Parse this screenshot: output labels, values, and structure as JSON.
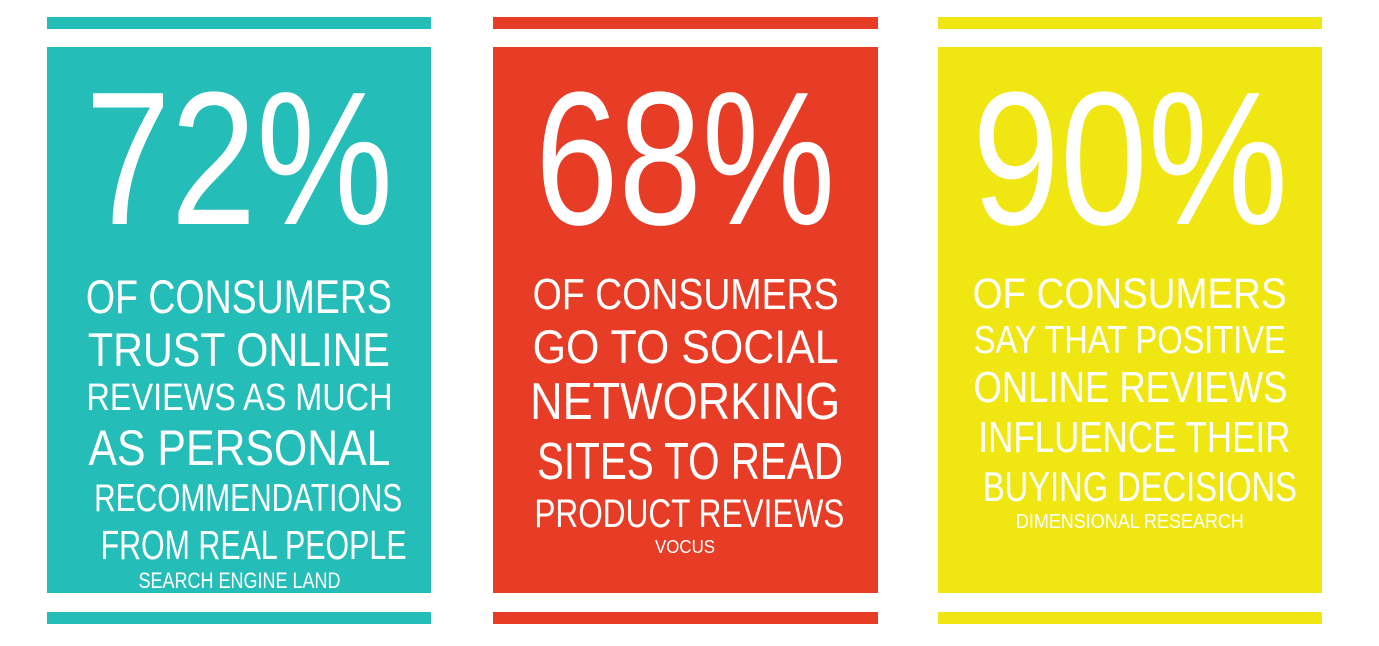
{
  "colors": {
    "teal": "#25BDB8",
    "red": "#E73C25",
    "yellow": "#F0E612",
    "text": "#FFFFFF"
  },
  "stats": [
    {
      "value": "72%",
      "lines": [
        "OF CONSUMERS",
        "TRUST ONLINE",
        "REVIEWS AS MUCH",
        "AS PERSONAL",
        "RECOMMENDATIONS",
        "FROM REAL PEOPLE"
      ],
      "source": "SEARCH ENGINE LAND"
    },
    {
      "value": "68%",
      "lines": [
        "OF CONSUMERS",
        "GO TO SOCIAL",
        "NETWORKING",
        "SITES TO READ",
        "PRODUCT REVIEWS"
      ],
      "source": "VOCUS"
    },
    {
      "value": "90%",
      "lines": [
        "OF CONSUMERS",
        "SAY THAT POSITIVE",
        "ONLINE REVIEWS",
        "INFLUENCE THEIR",
        "BUYING DECISIONS"
      ],
      "source": "DIMENSIONAL RESEARCH"
    }
  ]
}
